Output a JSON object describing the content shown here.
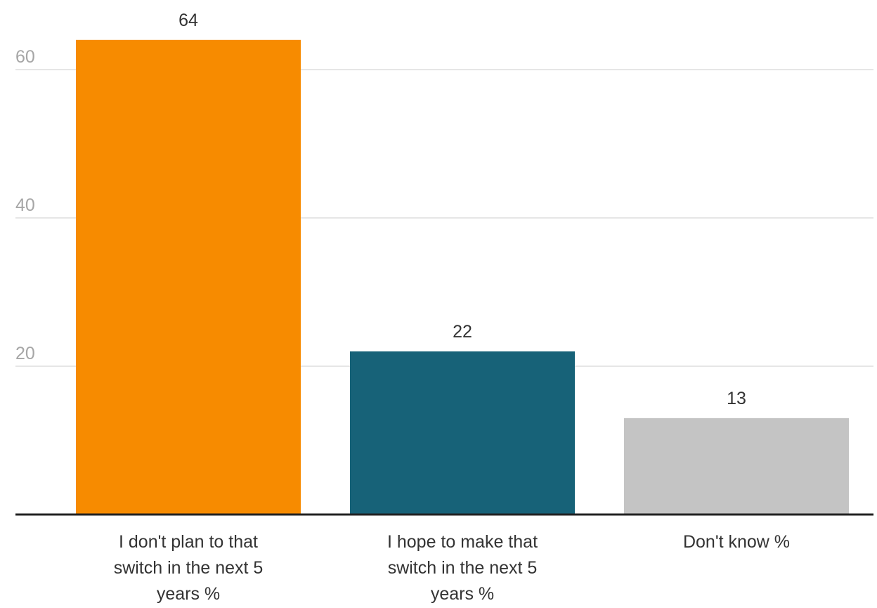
{
  "chart_data": {
    "type": "bar",
    "title": "",
    "xlabel": "",
    "ylabel": "",
    "categories": [
      "I don't plan to that switch in the next 5 years %",
      "I hope to make that switch in the next 5 years %",
      "Don't know %"
    ],
    "category_lines": [
      [
        "I don't plan to that",
        "switch in the next 5",
        "years %"
      ],
      [
        "I hope to make that",
        "switch in the next 5",
        "years %"
      ],
      [
        "Don't know %"
      ]
    ],
    "values": [
      64,
      22,
      13
    ],
    "value_labels": [
      "64",
      "22",
      "13"
    ],
    "colors": [
      "#f78b00",
      "#176278",
      "#c4c4c4"
    ],
    "ylim": [
      0,
      60
    ],
    "yticks": [
      20,
      40,
      60
    ],
    "ytick_labels": [
      "20",
      "40",
      "60"
    ],
    "grid": true,
    "legend": "none"
  }
}
